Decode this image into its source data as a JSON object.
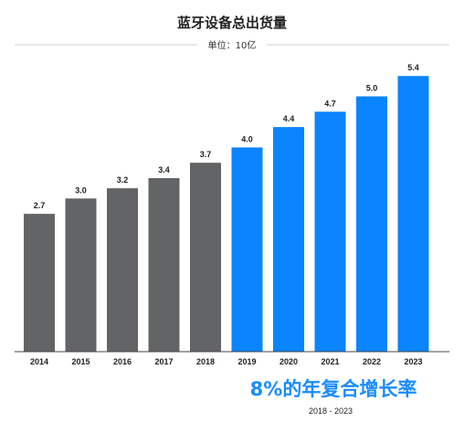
{
  "chart_data": {
    "type": "bar",
    "title": "蓝牙设备总出货量",
    "subtitle": "单位：10亿",
    "categories": [
      "2014",
      "2015",
      "2016",
      "2017",
      "2018",
      "2019",
      "2020",
      "2021",
      "2022",
      "2023"
    ],
    "values": [
      2.7,
      3.0,
      3.2,
      3.4,
      3.7,
      4.0,
      4.4,
      4.7,
      5.0,
      5.4
    ],
    "value_labels": [
      "2.7",
      "3.0",
      "3.2",
      "3.4",
      "3.7",
      "4.0",
      "4.4",
      "4.7",
      "5.0",
      "5.4"
    ],
    "ylim": [
      0,
      5.6
    ],
    "grid": false,
    "colors": {
      "historical": "#636466",
      "forecast": "#0a84ff",
      "annotation": "#1a8cff"
    },
    "forecast_start_index": 5,
    "annotation": {
      "text": "8%的年复合增长率",
      "range": "2018 - 2023"
    }
  }
}
